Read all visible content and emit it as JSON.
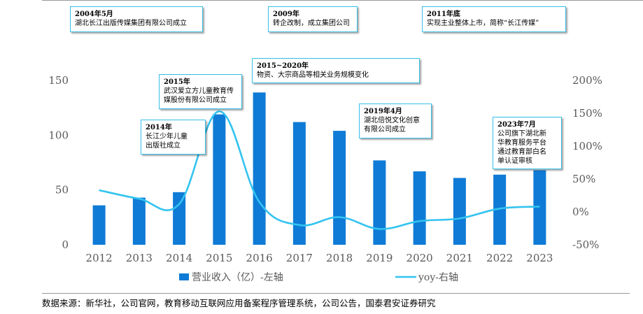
{
  "chart_data": {
    "type": "bar",
    "categories": [
      "2012",
      "2013",
      "2014",
      "2015",
      "2016",
      "2017",
      "2018",
      "2019",
      "2020",
      "2021",
      "2022",
      "2023"
    ],
    "series": [
      {
        "name": "营业收入（亿）-左轴",
        "type": "bar",
        "axis": "left",
        "color": "#0f7bd6",
        "values": [
          36,
          43,
          48,
          119,
          139,
          112,
          104,
          77,
          67,
          61,
          64,
          68
        ]
      },
      {
        "name": "yoy-右轴",
        "type": "line",
        "axis": "right",
        "color": "#33c3f0",
        "values": [
          33,
          20,
          12,
          153,
          15,
          -20,
          -8,
          -26,
          -14,
          -10,
          5,
          8
        ]
      }
    ],
    "y_left": {
      "min": 0,
      "max": 150,
      "ticks": [
        0,
        50,
        100,
        150
      ]
    },
    "y_right": {
      "min": -50,
      "max": 200,
      "ticks": [
        "-50%",
        "0%",
        "50%",
        "100%",
        "150%",
        "200%"
      ]
    },
    "grid": false,
    "legend_position": "bottom"
  },
  "annotations": [
    {
      "year": "2004年5月",
      "text": [
        "湖北长江出版传媒集团有限公司成立"
      ]
    },
    {
      "year": "2009年",
      "text": [
        "转企改制，成立集团公司"
      ]
    },
    {
      "year": "2011年底",
      "text": [
        "实现主业整体上市，简称“长江传媒”"
      ]
    },
    {
      "year": "2015~2020年",
      "text": [
        "物资、大宗商品等相关业务规模变化"
      ]
    },
    {
      "year": "2015年",
      "text": [
        "武汉爱立方儿童教育传",
        "媒股份有限公司成立"
      ]
    },
    {
      "year": "2014年",
      "text": [
        "长江少年儿童",
        "出版社成立"
      ]
    },
    {
      "year": "2019年4月",
      "text": [
        "湖北倍悦文化创意",
        "有限公司成立"
      ]
    },
    {
      "year": "2023年7月",
      "text": [
        "公司旗下湖北新",
        "华教育服务平台",
        "通过教育部白名",
        "单认证审核"
      ]
    }
  ],
  "source": "数据来源：新华社，公司官网，教育移动互联网应用备案程序管理系统，公司公告，国泰君安证券研究"
}
